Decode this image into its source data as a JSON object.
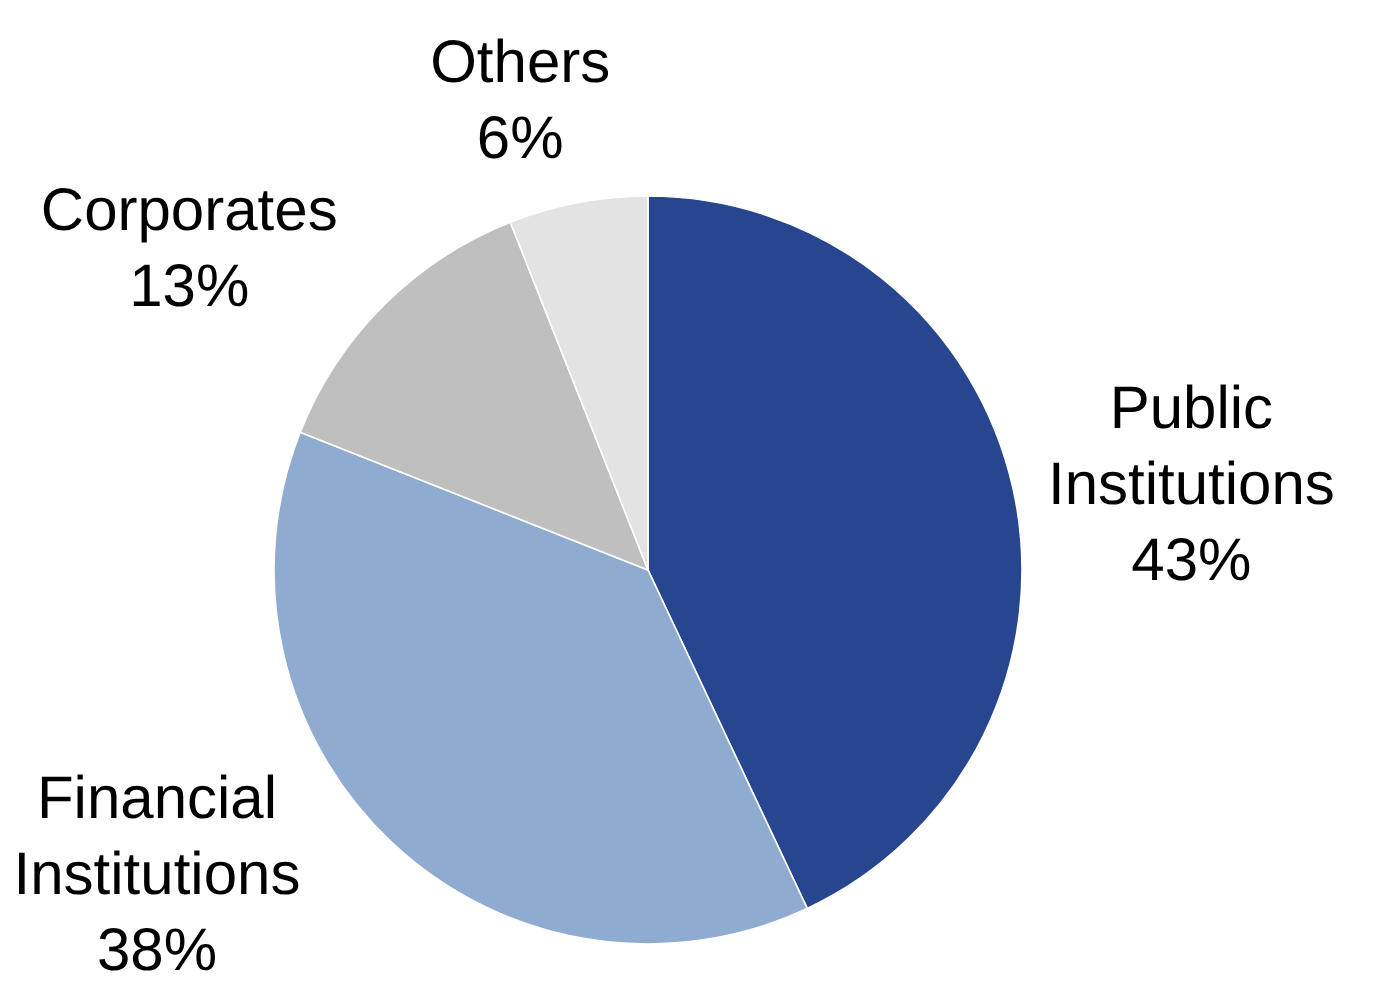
{
  "chart_data": {
    "type": "pie",
    "categories": [
      "Public Institutions",
      "Financial Institutions",
      "Corporates",
      "Others"
    ],
    "values": [
      43,
      38,
      13,
      6
    ],
    "colors": [
      "#27468f",
      "#8facd0",
      "#bfbfbf",
      "#e3e3e3"
    ],
    "value_labels": [
      "43%",
      "38%",
      "13%",
      "6%"
    ]
  }
}
